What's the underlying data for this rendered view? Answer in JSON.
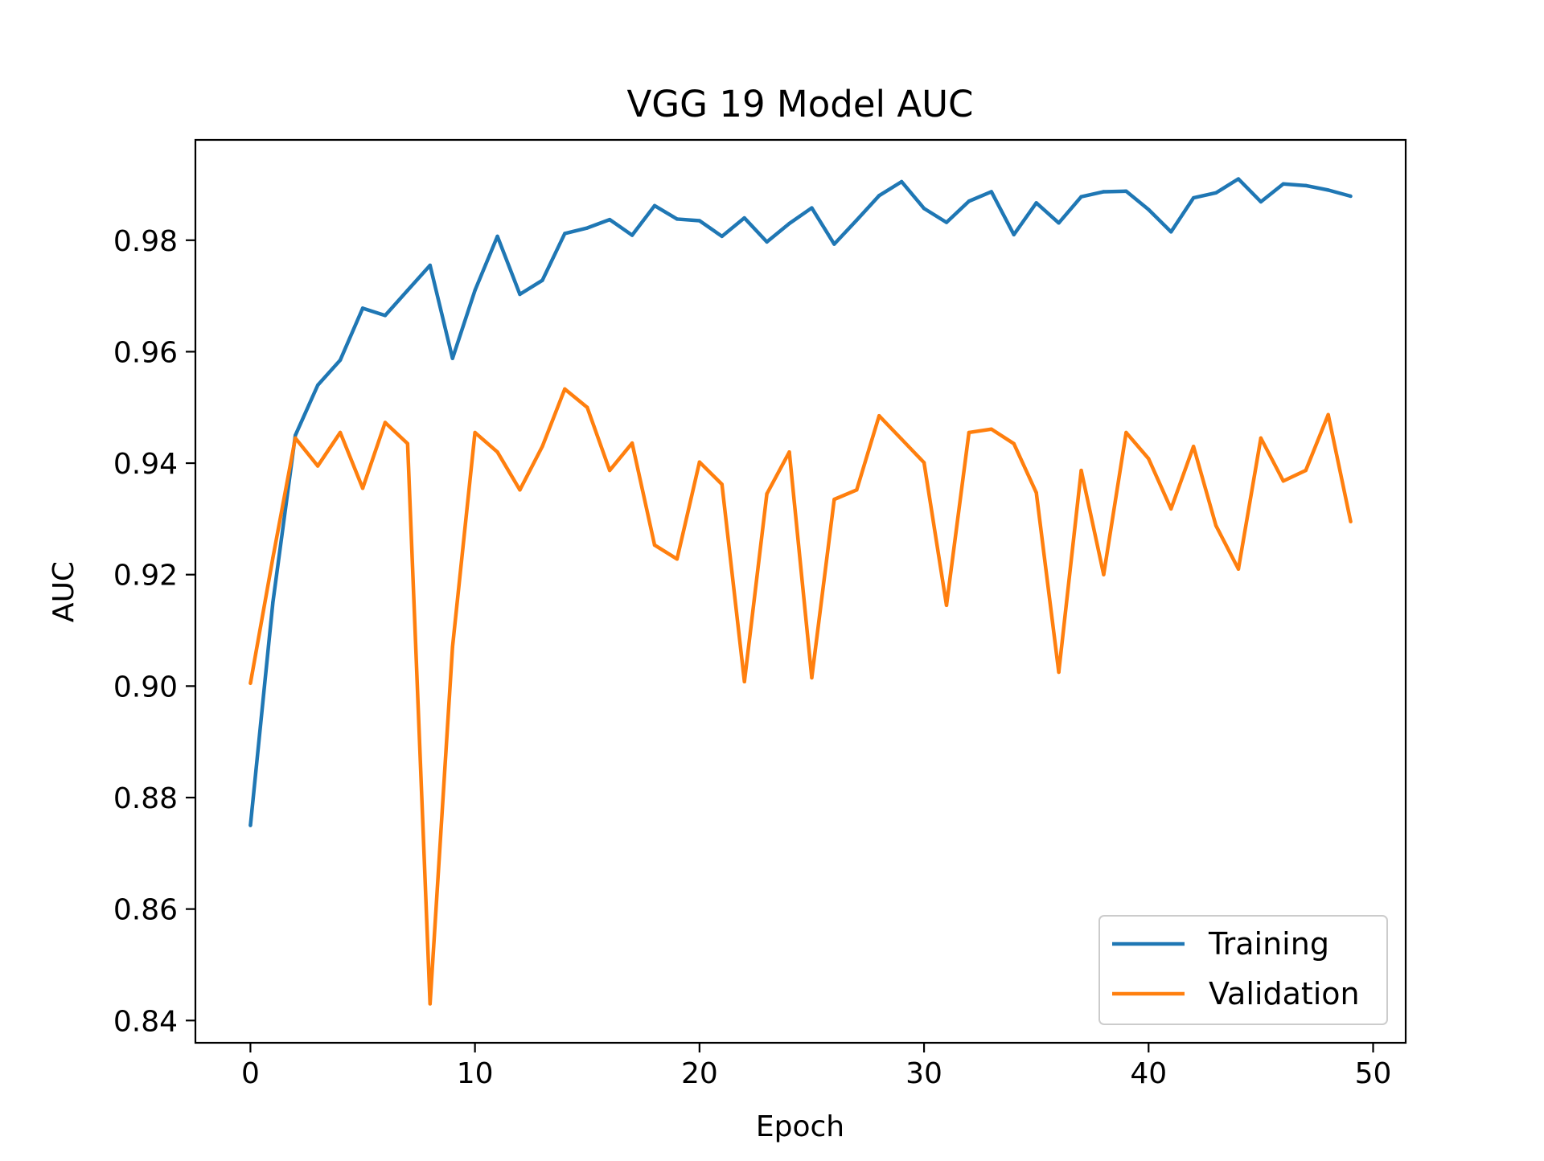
{
  "chart_data": {
    "type": "line",
    "title": "VGG 19 Model AUC",
    "xlabel": "Epoch",
    "ylabel": "AUC",
    "xlim": [
      -2.45,
      51.45
    ],
    "ylim": [
      0.836,
      0.998
    ],
    "xticks": [
      0,
      10,
      20,
      30,
      40,
      50
    ],
    "yticks": [
      0.84,
      0.86,
      0.88,
      0.9,
      0.92,
      0.94,
      0.96,
      0.98
    ],
    "xtick_labels": [
      "0",
      "10",
      "20",
      "30",
      "40",
      "50"
    ],
    "ytick_labels": [
      "0.84",
      "0.86",
      "0.88",
      "0.90",
      "0.92",
      "0.94",
      "0.96",
      "0.98"
    ],
    "grid": false,
    "legend_position": "lower-right",
    "x": [
      0,
      1,
      2,
      3,
      4,
      5,
      6,
      7,
      8,
      9,
      10,
      11,
      12,
      13,
      14,
      15,
      16,
      17,
      18,
      19,
      20,
      21,
      22,
      23,
      24,
      25,
      26,
      27,
      28,
      29,
      30,
      31,
      32,
      33,
      34,
      35,
      36,
      37,
      38,
      39,
      40,
      41,
      42,
      43,
      44,
      45,
      46,
      47,
      48,
      49
    ],
    "series": [
      {
        "name": "Training",
        "color": "#1f77b4",
        "values": [
          0.875,
          0.915,
          0.945,
          0.954,
          0.9585,
          0.9678,
          0.9665,
          0.971,
          0.9755,
          0.9588,
          0.971,
          0.9807,
          0.9703,
          0.9728,
          0.9812,
          0.9822,
          0.9837,
          0.9809,
          0.9862,
          0.9838,
          0.9835,
          0.9807,
          0.984,
          0.9797,
          0.983,
          0.9858,
          0.9793,
          0.9836,
          0.988,
          0.9905,
          0.9857,
          0.9832,
          0.987,
          0.9887,
          0.981,
          0.9867,
          0.9831,
          0.9878,
          0.9887,
          0.9888,
          0.9855,
          0.9815,
          0.9876,
          0.9885,
          0.991,
          0.9869,
          0.9901,
          0.9898,
          0.989,
          0.9879
        ]
      },
      {
        "name": "Validation",
        "color": "#ff7f0e",
        "values": [
          0.9005,
          0.923,
          0.9445,
          0.9395,
          0.9455,
          0.9355,
          0.9473,
          0.9435,
          0.843,
          0.907,
          0.9455,
          0.942,
          0.9352,
          0.943,
          0.9533,
          0.95,
          0.9387,
          0.9436,
          0.9253,
          0.9228,
          0.9402,
          0.9362,
          0.9008,
          0.9345,
          0.942,
          0.9015,
          0.9335,
          0.9352,
          0.9485,
          0.9443,
          0.9401,
          0.9145,
          0.9455,
          0.9461,
          0.9435,
          0.9347,
          0.9025,
          0.9387,
          0.92,
          0.9455,
          0.9408,
          0.9318,
          0.943,
          0.9288,
          0.921,
          0.9445,
          0.9368,
          0.9387,
          0.9487,
          0.9295
        ]
      }
    ]
  }
}
